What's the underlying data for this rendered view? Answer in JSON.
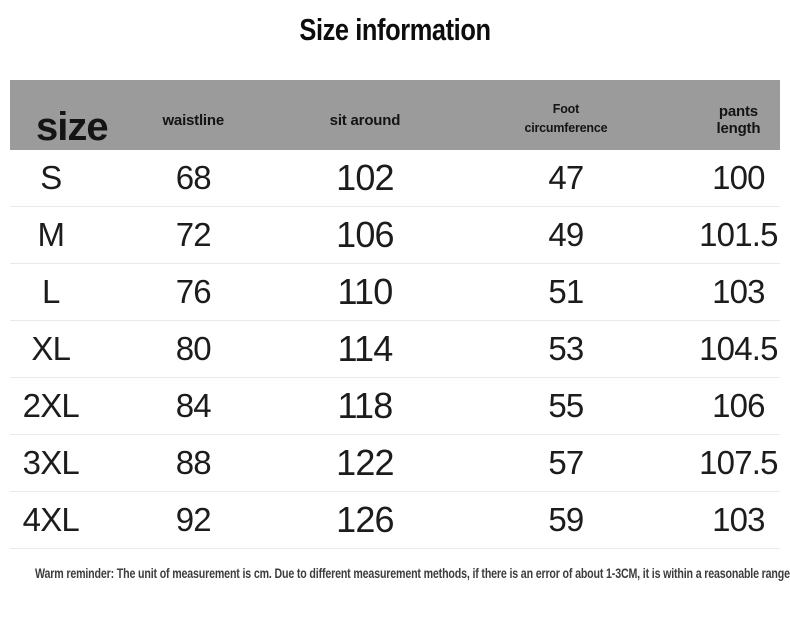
{
  "page": {
    "title": "Size information",
    "reminder": "Warm reminder: The unit of measurement is cm. Due to different measurement methods, if there is an error of about 1-3CM, it is within a reasonable range",
    "colors": {
      "background": "#ffffff",
      "header_bg": "#9b9b9b",
      "divider": "#e9e9e9",
      "data_text": "#1c1c1c",
      "reminder_text": "#3d3d3d"
    }
  },
  "table": {
    "columns": [
      {
        "key": "size",
        "label": "size"
      },
      {
        "key": "waistline",
        "label": "waistline"
      },
      {
        "key": "sit_around",
        "label": "sit around"
      },
      {
        "key": "foot_circumference",
        "label": "Foot circumference"
      },
      {
        "key": "pants_length",
        "label": "pants length"
      }
    ],
    "rows": [
      {
        "size": "S",
        "waistline": "68",
        "sit_around": "102",
        "foot_circumference": "47",
        "pants_length": "100"
      },
      {
        "size": "M",
        "waistline": "72",
        "sit_around": "106",
        "foot_circumference": "49",
        "pants_length": "101.5"
      },
      {
        "size": "L",
        "waistline": "76",
        "sit_around": "110",
        "foot_circumference": "51",
        "pants_length": "103"
      },
      {
        "size": "XL",
        "waistline": "80",
        "sit_around": "114",
        "foot_circumference": "53",
        "pants_length": "104.5"
      },
      {
        "size": "2XL",
        "waistline": "84",
        "sit_around": "118",
        "foot_circumference": "55",
        "pants_length": "106"
      },
      {
        "size": "3XL",
        "waistline": "88",
        "sit_around": "122",
        "foot_circumference": "57",
        "pants_length": "107.5"
      },
      {
        "size": "4XL",
        "waistline": "92",
        "sit_around": "126",
        "foot_circumference": "59",
        "pants_length": "103"
      }
    ]
  }
}
